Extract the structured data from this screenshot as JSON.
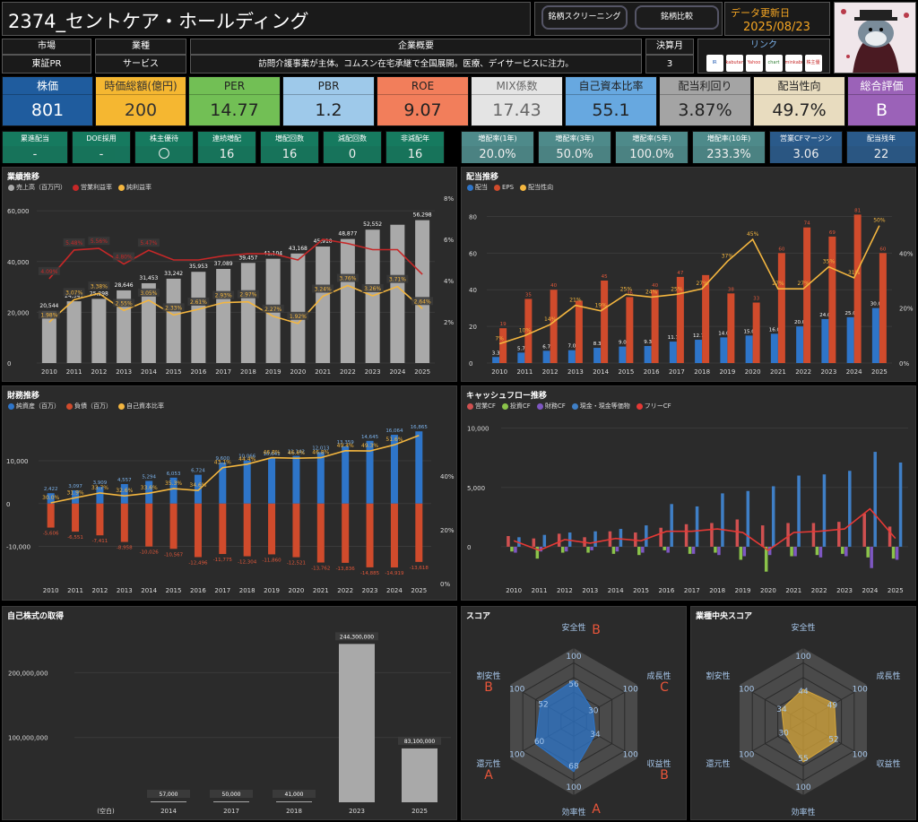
{
  "header": {
    "title": "2374_セントケア・ホールディング",
    "btn_screening": "銘柄スクリーニング",
    "btn_compare": "銘柄比較",
    "update_label": "データ更新日",
    "update_date": "2025/08/23"
  },
  "info": {
    "market_label": "市場",
    "market": "東証PR",
    "industry_label": "業種",
    "industry": "サービス",
    "summary_label": "企業概要",
    "summary": "訪問介護事業が主体。コムスン在宅承継で全国展開。医療、デイサービスに注力。",
    "fiscal_label": "決算月",
    "fiscal": "3",
    "link_label": "リンク",
    "links": [
      "IR BANK",
      "kabutan",
      "Yahoo",
      "chart",
      "minkabu",
      "株主優待"
    ]
  },
  "kpis": [
    {
      "label": "株価",
      "value": "801",
      "lab_bg": "#1f5c9e",
      "val_bg": "#1f5c9e",
      "color": "#fff"
    },
    {
      "label": "時価総額(億円)",
      "value": "200",
      "lab_bg": "#f5b731",
      "val_bg": "#f5b731",
      "color": "#333"
    },
    {
      "label": "PER",
      "value": "14.77",
      "lab_bg": "#72bf55",
      "val_bg": "#72bf55",
      "color": "#222"
    },
    {
      "label": "PBR",
      "value": "1.2",
      "lab_bg": "#9ec9ea",
      "val_bg": "#9ec9ea",
      "color": "#222"
    },
    {
      "label": "ROE",
      "value": "9.07",
      "lab_bg": "#f27e5b",
      "val_bg": "#f27e5b",
      "color": "#222"
    },
    {
      "label": "MIX係数",
      "value": "17.43",
      "lab_bg": "#e4e4e4",
      "val_bg": "#e4e4e4",
      "color": "#666"
    },
    {
      "label": "自己資本比率",
      "value": "55.1",
      "lab_bg": "#67a8e0",
      "val_bg": "#67a8e0",
      "color": "#222"
    },
    {
      "label": "配当利回り",
      "value": "3.87%",
      "lab_bg": "#a4a4a4",
      "val_bg": "#a4a4a4",
      "color": "#222"
    },
    {
      "label": "配当性向",
      "value": "49.7%",
      "lab_bg": "#e8dcbf",
      "val_bg": "#e8dcbf",
      "color": "#222"
    },
    {
      "label": "総合評価",
      "value": "B",
      "lab_bg": "#9b62b8",
      "val_bg": "#9b62b8",
      "color": "#fff"
    }
  ],
  "stats": [
    {
      "label": "累進配当",
      "value": "-",
      "bg": "#167a5f"
    },
    {
      "label": "DOE採用",
      "value": "-",
      "bg": "#167a5f"
    },
    {
      "label": "株主優待",
      "value": "〇",
      "bg": "#167a5f"
    },
    {
      "label": "連続増配",
      "value": "16",
      "bg": "#167a5f"
    },
    {
      "label": "増配回数",
      "value": "16",
      "bg": "#167a5f"
    },
    {
      "label": "減配回数",
      "value": "0",
      "bg": "#167a5f"
    },
    {
      "label": "非減配年",
      "value": "16",
      "bg": "#167a5f"
    },
    {
      "label": "増配率(1年)",
      "value": "20.0%",
      "bg": "#4e8a8a"
    },
    {
      "label": "増配率(3年)",
      "value": "50.0%",
      "bg": "#4e8a8a"
    },
    {
      "label": "増配率(5年)",
      "value": "100.0%",
      "bg": "#4e8a8a"
    },
    {
      "label": "増配率(10年)",
      "value": "233.3%",
      "bg": "#4e8a8a"
    },
    {
      "label": "営業CFマージン",
      "value": "3.06",
      "bg": "#2a5a8a"
    },
    {
      "label": "配当残年",
      "value": "22",
      "bg": "#2a5a8a"
    }
  ],
  "chart_data": [
    {
      "id": "gyoseki",
      "type": "bar",
      "title": "業績推移",
      "categories": [
        "2010",
        "2011",
        "2012",
        "2013",
        "2014",
        "2015",
        "2016",
        "2017",
        "2018",
        "2019",
        "2020",
        "2021",
        "2022",
        "2023",
        "2024",
        "2025"
      ],
      "series": [
        {
          "name": "売上高（百万円）",
          "color": "#a9a9a9",
          "values": [
            20544,
            24347,
            25298,
            28646,
            31453,
            33242,
            35953,
            37089,
            39457,
            41104,
            43168,
            45910,
            48877,
            52552,
            54500,
            56298
          ]
        },
        {
          "name": "営業利益率",
          "color": "#c62828",
          "values": [
            4.09,
            5.48,
            5.56,
            4.8,
            5.47,
            5.0,
            5.0,
            5.2,
            5.3,
            5.3,
            5.0,
            6.0,
            5.8,
            5.5,
            5.5,
            4.3
          ]
        },
        {
          "name": "純利益率",
          "color": "#f4b63f",
          "values": [
            1.98,
            3.07,
            3.38,
            2.55,
            3.05,
            2.33,
            2.61,
            2.93,
            2.97,
            2.27,
            1.92,
            3.24,
            3.76,
            3.26,
            3.71,
            2.64
          ]
        }
      ],
      "ylim": [
        0,
        65000
      ],
      "y2lim": [
        0,
        8
      ],
      "yticks": [
        "0",
        "20,000",
        "40,000",
        "60,000"
      ],
      "y2ticks": [
        "2%",
        "4%",
        "6%",
        "8%"
      ],
      "bar_labels": [
        "20,544",
        "24,347",
        "25,298",
        "28,646",
        "31,453",
        "33,242",
        "35,953",
        "37,089",
        "39,457",
        "41,104",
        "43,168",
        "45,910",
        "48,877",
        "52,552",
        "",
        "56,298"
      ],
      "op_labels": [
        "4.09%",
        "5.48%",
        "5.56%",
        "4.80%",
        "5.47%",
        "",
        "",
        "",
        "",
        "",
        "",
        "",
        "",
        "",
        "",
        ""
      ],
      "net_labels": [
        "1.98%",
        "3.07%",
        "3.38%",
        "2.55%",
        "3.05%",
        "2.33%",
        "2.61%",
        "2.93%",
        "2.97%",
        "2.27%",
        "1.92%",
        "3.24%",
        "3.76%",
        "3.26%",
        "3.71%",
        "2.64%"
      ]
    },
    {
      "id": "haito",
      "type": "bar",
      "title": "配当推移",
      "categories": [
        "2010",
        "2011",
        "2012",
        "2013",
        "2014",
        "2015",
        "2016",
        "2017",
        "2018",
        "2019",
        "2020",
        "2021",
        "2022",
        "2023",
        "2024",
        "2025"
      ],
      "series": [
        {
          "name": "配当",
          "color": "#2e75c9",
          "values": [
            3.3,
            5.7,
            6.7,
            7.0,
            8.3,
            9.0,
            9.3,
            11.7,
            12.7,
            14.0,
            15.0,
            16.0,
            20.0,
            24.0,
            25.0,
            30.0
          ]
        },
        {
          "name": "EPS",
          "color": "#d04b2c",
          "values": [
            19,
            35,
            40,
            34,
            45,
            36,
            40,
            47,
            48,
            38,
            33,
            60,
            74,
            69,
            81,
            60
          ]
        },
        {
          "name": "配当性向",
          "color": "#f4b63f",
          "values": [
            7,
            10,
            14,
            21,
            19,
            25,
            24,
            25,
            27,
            37,
            45,
            27,
            27,
            35,
            31,
            50
          ]
        }
      ],
      "ylim": [
        0,
        90
      ],
      "y2lim": [
        0,
        60
      ],
      "yticks": [
        "0",
        "20",
        "40",
        "60",
        "80"
      ],
      "y2ticks": [
        "0%",
        "20%",
        "40%"
      ],
      "div_labels": [
        "3.3",
        "5.7",
        "6.7",
        "7.0",
        "8.3",
        "9.0",
        "9.3",
        "11.7",
        "12.7",
        "14.0",
        "15.0",
        "16.0",
        "20.0",
        "24.0",
        "25.0",
        "30.0"
      ],
      "eps_labels": [
        "19",
        "35",
        "40",
        "",
        "45",
        "36",
        "40",
        "47",
        "",
        "38",
        "33",
        "60",
        "74",
        "69",
        "81",
        "60"
      ],
      "ratio_labels": [
        "7%",
        "10%",
        "14%",
        "21%",
        "19%",
        "25%",
        "24%",
        "25%",
        "27%",
        "37%",
        "45%",
        "27%",
        "27%",
        "35%",
        "31%",
        "50%"
      ]
    },
    {
      "id": "zaimu",
      "type": "bar",
      "title": "財務推移",
      "categories": [
        "2010",
        "2011",
        "2012",
        "2013",
        "2014",
        "2015",
        "2016",
        "2017",
        "2018",
        "2019",
        "2020",
        "2021",
        "2022",
        "2023",
        "2024",
        "2025"
      ],
      "series": [
        {
          "name": "純資産（百万）",
          "color": "#2e75c9",
          "values": [
            2422,
            3097,
            3909,
            4557,
            5294,
            6053,
            6724,
            9600,
            10066,
            10641,
            11142,
            12013,
            13359,
            14645,
            16064,
            16865
          ]
        },
        {
          "name": "負債（百万）",
          "color": "#d04b2c",
          "values": [
            -5606,
            -6551,
            -7411,
            -8958,
            -10026,
            -10567,
            -12496,
            -11775,
            -12304,
            -11860,
            -12521,
            -13762,
            -13836,
            -14885,
            -14919,
            -13618
          ]
        },
        {
          "name": "自己資本比率",
          "color": "#f4b63f",
          "values": [
            30.0,
            31.9,
            33.7,
            32.6,
            33.6,
            35.3,
            34.6,
            43.1,
            44.4,
            46.8,
            46.6,
            46.8,
            49.4,
            49.3,
            51.6,
            55.1
          ]
        }
      ],
      "ylim": [
        -17000,
        19000
      ],
      "y2lim": [
        0,
        60
      ],
      "yticks": [
        "-10,000",
        "0",
        "10,000"
      ],
      "y2ticks": [
        "0%",
        "20%",
        "40%"
      ],
      "pos_labels": [
        "2,422",
        "3,097",
        "3,909",
        "4,557",
        "5,294",
        "6,053",
        "6,724",
        "9,600",
        "10,066",
        "10,641",
        "11,142",
        "12,013",
        "13,359",
        "14,645",
        "16,064",
        "16,865"
      ],
      "neg_labels": [
        "-5,606",
        "-6,551",
        "-7,411",
        "-8,958",
        "-10,026",
        "-10,567",
        "-12,496",
        "-11,775",
        "-12,304",
        "-11,860",
        "-12,521",
        "-13,762",
        "-13,836",
        "-14,885",
        "-14,919",
        "-13,618"
      ],
      "ratio_labels": [
        "30.0%",
        "31.9%",
        "33.7%",
        "32.6%",
        "33.6%",
        "35.3%",
        "34.6%",
        "43.1%",
        "44.4%",
        "46.8%",
        "46.6%",
        "46.8%",
        "49.4%",
        "49.3%",
        "51.6%",
        ""
      ]
    },
    {
      "id": "cf",
      "type": "bar",
      "title": "キャッシュフロー推移",
      "categories": [
        "2010",
        "2011",
        "2012",
        "2013",
        "2014",
        "2015",
        "2016",
        "2017",
        "2018",
        "2019",
        "2020",
        "2021",
        "2022",
        "2023",
        "2024",
        "2025"
      ],
      "series": [
        {
          "name": "営業CF",
          "color": "#d05050",
          "values": [
            900,
            700,
            1100,
            800,
            1300,
            1200,
            1600,
            1900,
            2000,
            2300,
            1800,
            2000,
            2000,
            2100,
            2800,
            1700
          ]
        },
        {
          "name": "投資CF",
          "color": "#8bc34a",
          "values": [
            -400,
            -1000,
            -500,
            -500,
            -600,
            -700,
            -300,
            -600,
            -500,
            -1100,
            -2100,
            -800,
            -700,
            -600,
            -900,
            -1000
          ]
        },
        {
          "name": "財務CF",
          "color": "#7e57c2",
          "values": [
            -500,
            -400,
            -400,
            -300,
            -400,
            -500,
            -500,
            -600,
            -700,
            -800,
            -700,
            -800,
            -900,
            -800,
            -1800,
            -1100
          ]
        },
        {
          "name": "現金・現金等価物",
          "color": "#3f7fc6",
          "values": [
            800,
            1000,
            1200,
            1300,
            1500,
            1800,
            3600,
            3400,
            4500,
            4700,
            5100,
            6000,
            6100,
            6400,
            8000,
            7100
          ]
        },
        {
          "name": "フリーCF",
          "color": "#e53935",
          "values": [
            500,
            -300,
            600,
            300,
            700,
            500,
            1300,
            1300,
            1500,
            1200,
            -300,
            1200,
            1300,
            1500,
            3200,
            700
          ]
        }
      ],
      "ylim": [
        -2500,
        10500
      ],
      "yticks": [
        "0",
        "5,000",
        "10,000"
      ]
    },
    {
      "id": "jisha",
      "type": "bar",
      "title": "自己株式の取得",
      "categories": [
        "(空白)",
        "2014",
        "2017",
        "2018",
        "2023",
        "2025"
      ],
      "values": [
        0,
        57000,
        50000,
        41000,
        244300000,
        83100000
      ],
      "value_labels": [
        "",
        "57,000",
        "50,000",
        "41,000",
        "244,300,000",
        "83,100,000"
      ],
      "ylim": [
        0,
        260000000
      ],
      "yticks": [
        "100,000,000",
        "200,000,000"
      ],
      "color": "#a9a9a9"
    },
    {
      "id": "score",
      "type": "radar",
      "title": "スコア",
      "axes": [
        "安全性",
        "成長性",
        "収益性",
        "効率性",
        "還元性",
        "割安性"
      ],
      "values": [
        56,
        30,
        34,
        68,
        60,
        52
      ],
      "max": 100,
      "grades": [
        "B",
        "C",
        "B",
        "A",
        "A",
        "B"
      ],
      "color": "#2e75c9"
    },
    {
      "id": "median",
      "type": "radar",
      "title": "業種中央スコア",
      "axes": [
        "安全性",
        "成長性",
        "収益性",
        "効率性",
        "還元性",
        "割安性"
      ],
      "values": [
        44,
        49,
        52,
        55,
        30,
        34
      ],
      "max": 100,
      "color": "#d6a63a"
    }
  ]
}
